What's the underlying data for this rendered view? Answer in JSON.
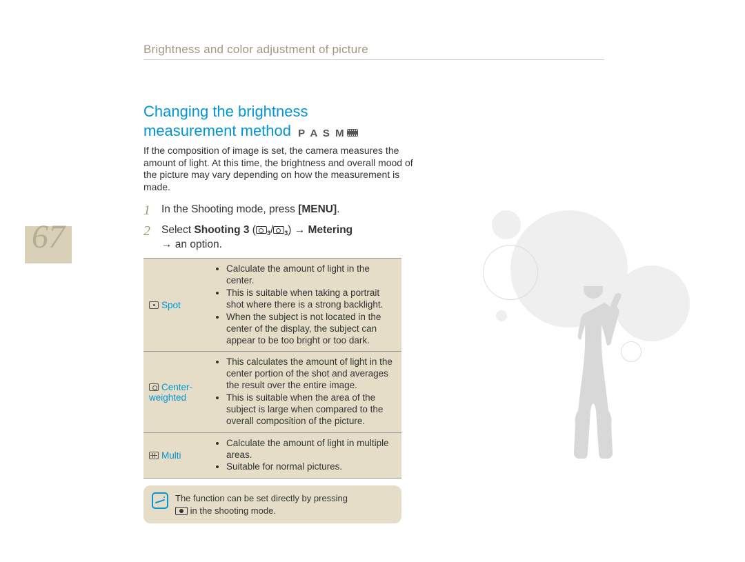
{
  "header": {
    "breadcrumb": "Brightness and color adjustment of picture"
  },
  "page_number": "67",
  "section": {
    "title_line1": "Changing the brightness",
    "title_line2": "measurement method",
    "modes": "P A S M",
    "intro": "If the composition of image is set, the camera measures the amount of light. At this time, the brightness and overall mood of the picture may vary depending on how the measurement is made."
  },
  "steps": [
    {
      "num": "1",
      "text_prefix": "In the Shooting mode, press ",
      "bold": "[MENU]",
      "suffix": "."
    },
    {
      "num": "2",
      "text_prefix": "Select ",
      "bold1": "Shooting 3",
      "middle": " (",
      "sub": "3",
      "slash": "/",
      "sub2": "3",
      "close": ") ",
      "arrow": "→",
      "bold2": " Metering",
      "line2_arrow": "→",
      "line2_suffix": " an option."
    }
  ],
  "table": {
    "rows": [
      {
        "label": "Spot",
        "icon": "spot",
        "bullets": [
          "Calculate the amount of light in the center.",
          "This is suitable when taking a portrait shot where there is a strong backlight.",
          "When the subject is not located in the center of the display, the subject can appear to be too bright or too dark."
        ]
      },
      {
        "label": "Center-weighted",
        "icon": "center",
        "bullets": [
          "This calculates the amount of light in the center portion of the shot and averages the result over the entire image.",
          "This is suitable when the area of the subject is large when compared to the overall composition of the picture."
        ]
      },
      {
        "label": "Multi",
        "icon": "multi",
        "bullets": [
          "Calculate the amount of light in multiple areas.",
          "Suitable for normal pictures."
        ]
      }
    ]
  },
  "note": {
    "line1": "The function can be set directly by pressing",
    "line2_suffix": " in the shooting mode."
  },
  "colors": {
    "accent": "#0096d6",
    "tan_bg": "#e5ddc7",
    "muted": "#a09878"
  }
}
